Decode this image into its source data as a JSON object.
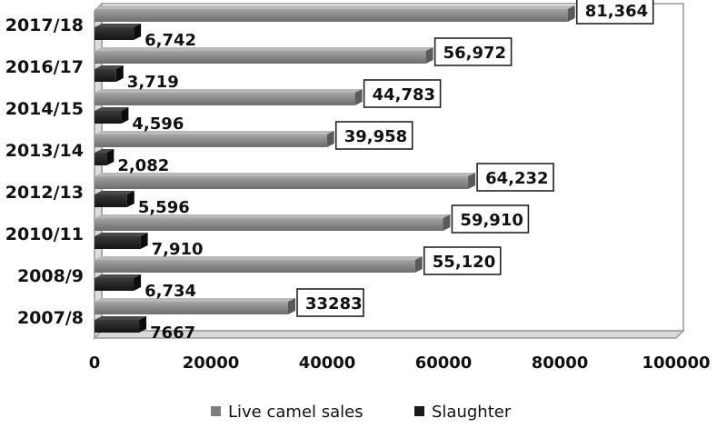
{
  "chart_data": {
    "type": "bar",
    "orientation": "horizontal",
    "style": "3d",
    "categories": [
      "2007/8",
      "2008/9",
      "2010/11",
      "2012/13",
      "2013/14",
      "2014/15",
      "2016/17",
      "2017/18"
    ],
    "series": [
      {
        "name": "Live camel sales",
        "color": "#7f7f7f",
        "values": [
          33283,
          55120,
          59910,
          64232,
          39958,
          44783,
          56972,
          81364
        ],
        "labels": [
          "33283",
          "55,120",
          "59,910",
          "64,232",
          "39,958",
          "44,783",
          "56,972",
          "81,364"
        ],
        "labels_boxed": true
      },
      {
        "name": "Slaughter",
        "color": "#262626",
        "values": [
          7667,
          6734,
          7910,
          5596,
          2082,
          4596,
          3719,
          6742
        ],
        "labels": [
          "7667",
          "6,734",
          "7,910",
          "5,596",
          "2,082",
          "4,596",
          "3,719",
          "6,742"
        ],
        "labels_boxed": false
      }
    ],
    "xlim": [
      0,
      100000
    ],
    "xticks": [
      "0",
      "20000",
      "40000",
      "60000",
      "80000",
      "100000"
    ],
    "grid": false,
    "legend_position": "bottom"
  }
}
